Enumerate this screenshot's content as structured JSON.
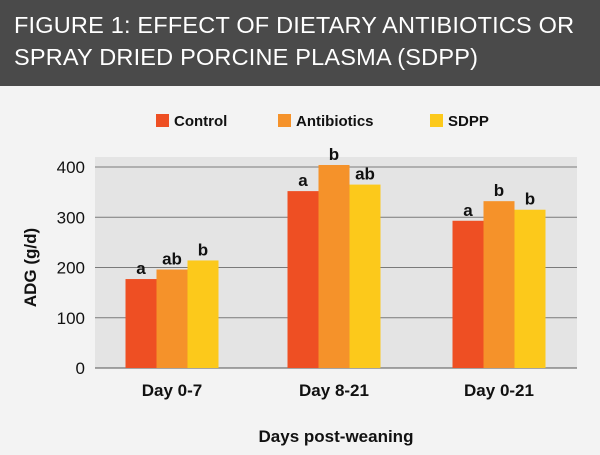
{
  "header": {
    "title": "FIGURE 1: EFFECT OF DIETARY ANTIBIOTICS OR SPRAY DRIED PORCINE PLASMA (SDPP)"
  },
  "colors": {
    "header_bg": "#4a4a4a",
    "plot_bg": "#e4e4e4",
    "grid": "#7a7a7a",
    "control": "#ee4f23",
    "antibiotics": "#f5922a",
    "sdpp": "#fcc91b"
  },
  "chart_data": {
    "type": "bar",
    "categories": [
      "Day 0-7",
      "Day 8-21",
      "Day 0-21"
    ],
    "series": [
      {
        "name": "Control",
        "color": "#ee4f23",
        "values": [
          177,
          352,
          293
        ],
        "labels": [
          "a",
          "a",
          "a"
        ]
      },
      {
        "name": "Antibiotics",
        "color": "#f5922a",
        "values": [
          196,
          404,
          332
        ],
        "labels": [
          "ab",
          "b",
          "b"
        ]
      },
      {
        "name": "SDPP",
        "color": "#fcc91b",
        "values": [
          214,
          365,
          315
        ],
        "labels": [
          "b",
          "ab",
          "b"
        ]
      }
    ],
    "xlabel": "Days post-weaning",
    "ylabel": "ADG (g/d)",
    "ylim": [
      0,
      400
    ],
    "yticks": [
      0,
      100,
      200,
      300,
      400
    ],
    "grid": true,
    "legend": "top"
  }
}
